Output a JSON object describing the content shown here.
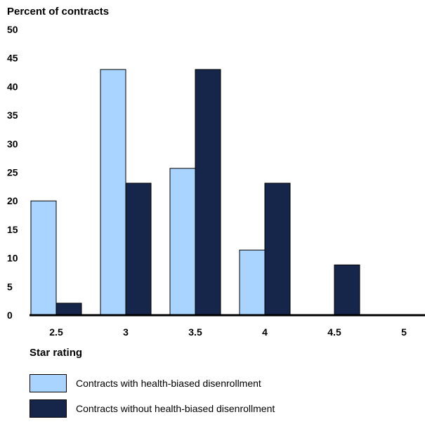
{
  "chart_data": {
    "type": "bar",
    "ylabel": "Percent of contracts",
    "xlabel": "Star rating",
    "categories": [
      "2.5",
      "3",
      "3.5",
      "4",
      "4.5",
      "5"
    ],
    "ylim": [
      0,
      50
    ],
    "yticks": [
      "0",
      "5",
      "10",
      "15",
      "20",
      "25",
      "30",
      "35",
      "40",
      "45",
      "50"
    ],
    "grid": false,
    "legend_position": "bottom",
    "series": [
      {
        "name": "Contracts with health-biased disenrollment",
        "color": "#a9d4ff",
        "values": [
          20,
          43,
          25.7,
          11.4,
          0,
          0
        ]
      },
      {
        "name": "Contracts without health-biased disenrollment",
        "color": "#16254a",
        "values": [
          2.1,
          23.1,
          43,
          23.1,
          8.8,
          0
        ]
      }
    ]
  }
}
